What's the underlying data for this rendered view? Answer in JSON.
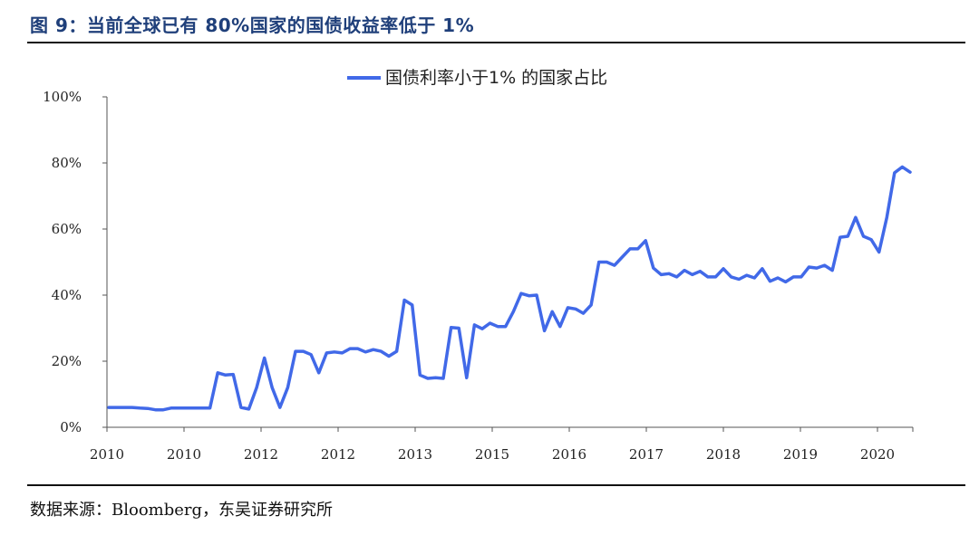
{
  "figure": {
    "title": "图 9：当前全球已有 80%国家的国债收益率低于 1%",
    "source": "数据来源：Bloomberg，东吴证券研究所"
  },
  "colors": {
    "line": "#4169e8",
    "title": "#1f3f7a"
  },
  "chart_data": {
    "type": "line",
    "title": "",
    "xlabel": "",
    "ylabel": "",
    "ylim": [
      0,
      100
    ],
    "y_ticks": [
      "0%",
      "20%",
      "40%",
      "60%",
      "80%",
      "100%"
    ],
    "x_ticks": [
      "2010",
      "2010",
      "2012",
      "2012",
      "2013",
      "2015",
      "2016",
      "2017",
      "2018",
      "2019",
      "2020"
    ],
    "legend_position": "top-center",
    "grid": false,
    "series": [
      {
        "name": "国债利率小于1% 的国家占比",
        "values": [
          6,
          6,
          6,
          6,
          5.8,
          5.7,
          5.3,
          5.3,
          5.8,
          5.8,
          5.8,
          5.8,
          5.8,
          5.8,
          16.5,
          15.8,
          16,
          6,
          5.5,
          12,
          21,
          12,
          6,
          12,
          23,
          23,
          22,
          16.5,
          22.5,
          22.8,
          22.5,
          23.8,
          23.8,
          22.8,
          23.5,
          23,
          21.5,
          23,
          38.5,
          37,
          15.8,
          14.8,
          15,
          14.8,
          30.2,
          30,
          15,
          31,
          29.8,
          31.5,
          30.5,
          30.5,
          35,
          40.5,
          39.8,
          40,
          29.2,
          35,
          30.5,
          36.2,
          35.8,
          34.5,
          37,
          50,
          50,
          49,
          51.5,
          54,
          54,
          56.5,
          48.2,
          46.2,
          46.5,
          45.5,
          47.5,
          46.2,
          47.2,
          45.5,
          45.5,
          48,
          45.5,
          44.8,
          46,
          45.2,
          48,
          44.2,
          45.2,
          44,
          45.5,
          45.5,
          48.5,
          48.2,
          49,
          47.5,
          57.5,
          57.8,
          63.5,
          57.8,
          56.8,
          53,
          63.5,
          77,
          78.8,
          77.2
        ]
      }
    ]
  }
}
